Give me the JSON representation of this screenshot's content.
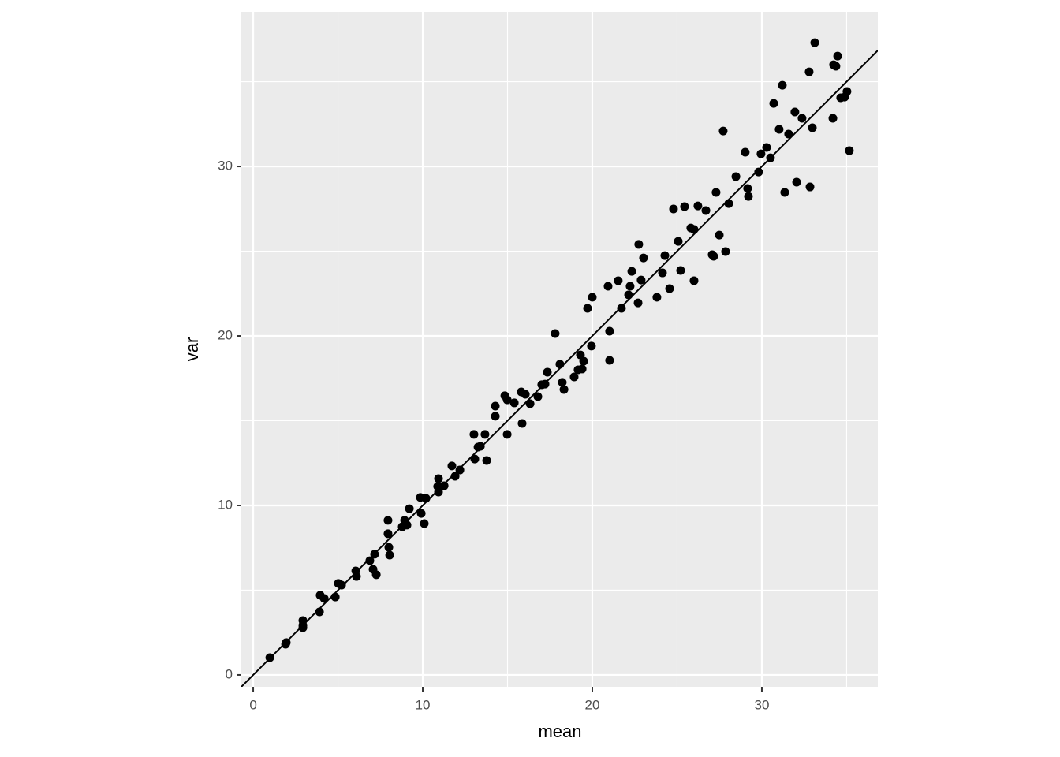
{
  "chart_data": {
    "type": "scatter",
    "x_label": "mean",
    "y_label": "var",
    "xlim": [
      -0.7,
      36.84
    ],
    "ylim": [
      -0.7,
      39.12
    ],
    "xticks": [
      0,
      10,
      20,
      30
    ],
    "yticks": [
      0,
      10,
      20,
      30
    ],
    "xminor": [
      5,
      15,
      25,
      35
    ],
    "yminor": [
      5,
      15,
      25,
      35
    ],
    "grid": true,
    "color": "#000000",
    "reference_line": {
      "slope": 1,
      "intercept": 0
    },
    "x": [
      0.98,
      1.91,
      1.95,
      2.93,
      2.93,
      2.93,
      3.91,
      3.95,
      4.19,
      4.84,
      5.02,
      5.21,
      6.05,
      6.09,
      6.88,
      7.16,
      7.07,
      7.26,
      7.95,
      8.0,
      8.05,
      7.95,
      8.79,
      8.93,
      9.07,
      9.21,
      9.86,
      10.19,
      9.91,
      10.09,
      10.93,
      10.88,
      10.93,
      11.26,
      11.72,
      11.91,
      12.19,
      13.02,
      13.07,
      13.26,
      13.4,
      13.67,
      13.77,
      14.28,
      14.28,
      14.84,
      14.98,
      15.4,
      14.98,
      15.81,
      16.05,
      15.86,
      16.33,
      16.79,
      17.02,
      17.21,
      17.35,
      17.81,
      18.09,
      18.23,
      18.33,
      18.93,
      19.16,
      19.4,
      19.3,
      19.49,
      19.72,
      20.0,
      19.95,
      21.02,
      21.02,
      20.93,
      21.53,
      21.72,
      22.14,
      22.23,
      22.33,
      22.74,
      22.7,
      22.88,
      23.02,
      23.81,
      24.14,
      24.28,
      24.56,
      24.79,
      25.07,
      25.21,
      25.44,
      25.81,
      26.0,
      26.0,
      26.23,
      26.7,
      27.07,
      27.16,
      27.3,
      27.49,
      27.72,
      27.86,
      28.05,
      28.47,
      29.02,
      29.16,
      29.21,
      29.81,
      29.95,
      30.28,
      30.51,
      30.7,
      31.02,
      31.21,
      31.35,
      31.58,
      31.95,
      32.05,
      32.37,
      32.79,
      32.84,
      32.98,
      33.12,
      34.19,
      34.23,
      34.37,
      34.47,
      34.65,
      34.88,
      35.02,
      35.16
    ],
    "values": [
      1.02,
      1.81,
      1.91,
      3.21,
      2.93,
      2.79,
      3.72,
      4.7,
      4.51,
      4.6,
      5.4,
      5.3,
      6.14,
      5.81,
      6.74,
      7.12,
      6.23,
      5.91,
      8.33,
      7.53,
      7.07,
      9.12,
      8.74,
      9.12,
      8.84,
      9.81,
      10.47,
      10.42,
      9.53,
      8.93,
      11.58,
      11.12,
      10.79,
      11.16,
      12.33,
      11.72,
      12.09,
      14.19,
      12.74,
      13.44,
      13.49,
      14.19,
      12.65,
      15.86,
      15.26,
      16.47,
      16.23,
      16.05,
      14.19,
      16.7,
      16.56,
      14.84,
      16.0,
      16.42,
      17.12,
      17.16,
      17.86,
      20.14,
      18.33,
      17.26,
      16.84,
      17.58,
      18.0,
      18.05,
      18.88,
      18.51,
      21.63,
      22.28,
      19.4,
      18.56,
      20.28,
      22.93,
      23.26,
      21.63,
      22.42,
      22.93,
      23.81,
      25.4,
      21.95,
      23.3,
      24.6,
      22.28,
      23.72,
      24.74,
      22.79,
      27.49,
      25.58,
      23.86,
      27.63,
      26.37,
      26.28,
      23.26,
      27.67,
      27.4,
      24.79,
      24.7,
      28.47,
      25.95,
      32.09,
      24.98,
      27.81,
      29.4,
      30.84,
      28.7,
      28.23,
      29.67,
      30.74,
      31.12,
      30.51,
      33.72,
      32.19,
      34.79,
      28.47,
      31.91,
      33.21,
      29.07,
      32.84,
      35.58,
      28.79,
      32.28,
      37.3,
      32.84,
      36.0,
      35.91,
      36.51,
      34.05,
      34.09,
      34.42,
      30.93
    ]
  }
}
